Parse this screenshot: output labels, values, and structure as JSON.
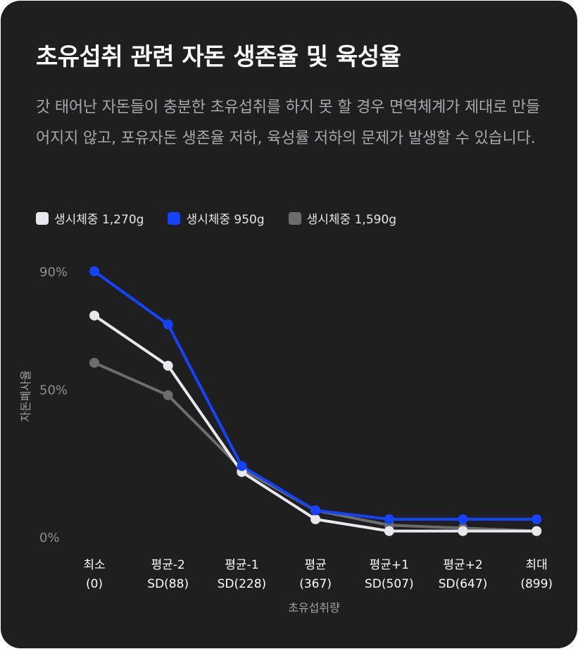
{
  "title": "초유섭취 관련 자돈 생존율 및 육성율",
  "description": "갓 태어난 자돈들이 충분한 초유섭취를 하지 못 할 경우 면역체계가 제대로 만들어지지 않고, 포유자돈 생존율 저하, 육성률 저하의 문제가 발생할 수 있습니다.",
  "colors": {
    "background": "#1f1f1f",
    "series_1270": "#e8e8ee",
    "series_950": "#1443ff",
    "series_1590": "#6d6d6d"
  },
  "chart_data": {
    "type": "line",
    "xlabel": "초유섭취량",
    "ylabel": "자돈폐사율",
    "ylim": [
      0,
      90
    ],
    "yticks": [
      "90%",
      "50%",
      "0%"
    ],
    "ytick_values": [
      90,
      50,
      0
    ],
    "categories": [
      {
        "line1": "최소",
        "line2": "(0)"
      },
      {
        "line1": "평균-2",
        "line2": "SD(88)"
      },
      {
        "line1": "평균-1",
        "line2": "SD(228)"
      },
      {
        "line1": "평균",
        "line2": "(367)"
      },
      {
        "line1": "평균+1",
        "line2": "SD(507)"
      },
      {
        "line1": "평균+2",
        "line2": "SD(647)"
      },
      {
        "line1": "최대",
        "line2": "(899)"
      }
    ],
    "legend_position": "top-left",
    "series": [
      {
        "name": "생시체중 1,270g",
        "color": "#e8e8ee",
        "values": [
          75,
          58,
          22,
          6,
          2,
          2,
          2
        ]
      },
      {
        "name": "생시체중 950g",
        "color": "#1443ff",
        "values": [
          90,
          72,
          24,
          9,
          6,
          6,
          6
        ]
      },
      {
        "name": "생시체중 1,590g",
        "color": "#6d6d6d",
        "values": [
          59,
          48,
          23,
          9,
          4,
          3,
          2
        ]
      }
    ]
  }
}
